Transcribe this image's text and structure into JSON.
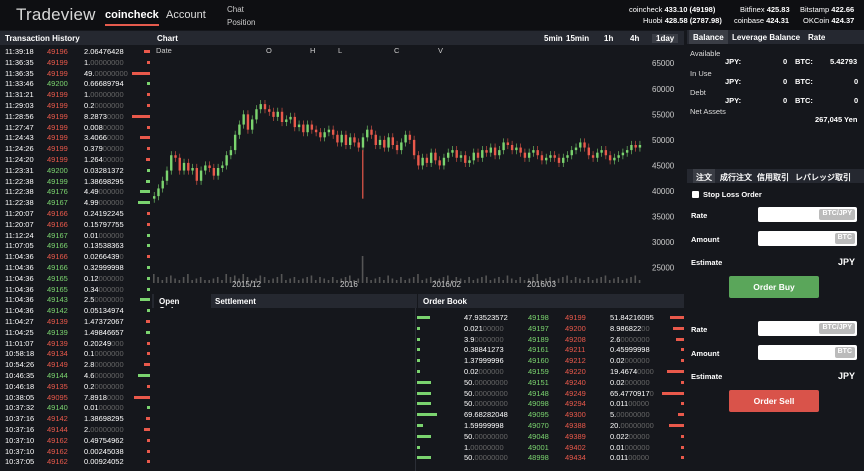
{
  "app": {
    "logo": "Tradeview",
    "nav": [
      "coincheck",
      "Account"
    ],
    "chat": "Chat",
    "position": "Position"
  },
  "quotes": [
    {
      "ex": "coincheck",
      "val": "433.10 (49198)"
    },
    {
      "ex": "Bitfinex",
      "val": "425.83"
    },
    {
      "ex": "Bitstamp",
      "val": "422.66"
    },
    {
      "ex": "Huobi",
      "val": "428.58 (2787.98)"
    },
    {
      "ex": "coinbase",
      "val": "424.31"
    },
    {
      "ex": "OKCoin",
      "val": "424.37"
    }
  ],
  "transaction_history": {
    "title": "Transaction History",
    "rows": [
      [
        "11:39:18",
        "49196",
        "2.06476428",
        "r",
        0.3
      ],
      [
        "11:36:35",
        "49199",
        "1.00000000",
        "r",
        0.1
      ],
      [
        "11:36:35",
        "49199",
        "49.00000000",
        "r",
        0.9
      ],
      [
        "11:33:46",
        "49200",
        "0.66689794",
        "g",
        0.1
      ],
      [
        "11:31:21",
        "49199",
        "1.00000000",
        "r",
        0.1
      ],
      [
        "11:29:03",
        "49199",
        "0.20000000",
        "r",
        0.05
      ],
      [
        "11:28:56",
        "49199",
        "8.28730000",
        "r",
        0.9
      ],
      [
        "11:27:47",
        "49199",
        "0.00800000",
        "r",
        0.05
      ],
      [
        "11:24:43",
        "49199",
        "3.40660000",
        "r",
        0.5
      ],
      [
        "11:24:26",
        "49199",
        "0.37900000",
        "r",
        0.1
      ],
      [
        "11:24:20",
        "49199",
        "1.26400000",
        "r",
        0.2
      ],
      [
        "11:23:31",
        "49200",
        "0.03281372",
        "g",
        0.05
      ],
      [
        "11:22:38",
        "49199",
        "1.38698295",
        "g",
        0.2
      ],
      [
        "11:22:38",
        "49176",
        "4.49000000",
        "g",
        0.5
      ],
      [
        "11:22:38",
        "49167",
        "4.99000000",
        "g",
        0.6
      ],
      [
        "11:20:07",
        "49166",
        "0.24192245",
        "r",
        0.05
      ],
      [
        "11:20:07",
        "49166",
        "0.15797755",
        "r",
        0.05
      ],
      [
        "11:12:24",
        "49167",
        "0.01000000",
        "g",
        0.05
      ],
      [
        "11:07:05",
        "49166",
        "0.13538363",
        "g",
        0.05
      ],
      [
        "11:04:36",
        "49166",
        "0.02664390",
        "r",
        0.05
      ],
      [
        "11:04:36",
        "49166",
        "0.32999998",
        "g",
        0.05
      ],
      [
        "11:04:36",
        "49165",
        "0.12000000",
        "g",
        0.05
      ],
      [
        "11:04:36",
        "49165",
        "0.34000000",
        "g",
        0.05
      ],
      [
        "11:04:36",
        "49143",
        "2.50000000",
        "g",
        0.5
      ],
      [
        "11:04:36",
        "49142",
        "0.05134974",
        "g",
        0.05
      ],
      [
        "11:04:27",
        "49139",
        "1.47372067",
        "r",
        0.2
      ],
      [
        "11:04:25",
        "49139",
        "1.49846657",
        "g",
        0.2
      ],
      [
        "11:01:07",
        "49139",
        "0.20249000",
        "r",
        0.05
      ],
      [
        "10:58:18",
        "49134",
        "0.10000000",
        "r",
        0.05
      ],
      [
        "10:54:26",
        "49149",
        "2.80000000",
        "r",
        0.3
      ],
      [
        "10:46:35",
        "49144",
        "4.60000000",
        "g",
        0.6
      ],
      [
        "10:46:18",
        "49135",
        "0.20000000",
        "r",
        0.05
      ],
      [
        "10:38:05",
        "49095",
        "7.89180000",
        "r",
        0.8
      ],
      [
        "10:37:32",
        "49140",
        "0.01000000",
        "g",
        0.05
      ],
      [
        "10:37:16",
        "49142",
        "1.38698295",
        "r",
        0.2
      ],
      [
        "10:37:16",
        "49144",
        "2.00000000",
        "r",
        0.3
      ],
      [
        "10:37:10",
        "49162",
        "0.49754962",
        "r",
        0.05
      ],
      [
        "10:37:10",
        "49162",
        "0.00245038",
        "r",
        0.05
      ],
      [
        "10:37:05",
        "49162",
        "0.00924052",
        "r",
        0.05
      ]
    ]
  },
  "chart": {
    "title": "Chart",
    "timeframes": [
      "5min",
      "15min",
      "1h",
      "4h",
      "1day"
    ],
    "selected_timeframe": "1day",
    "legend": [
      "Date",
      "O",
      "H",
      "L",
      "C",
      "V"
    ]
  },
  "chart_data": {
    "type": "candlestick",
    "y_ticks": [
      65000,
      60000,
      55000,
      50000,
      45000,
      40000,
      35000,
      30000,
      25000
    ],
    "ylim": [
      22000,
      67000
    ],
    "x_labels": [
      "2015/12",
      "2016",
      "2016/02",
      "2016/03"
    ],
    "closes": [
      39000,
      40500,
      42000,
      44000,
      47000,
      46500,
      44000,
      45500,
      44000,
      44500,
      42000,
      44000,
      45000,
      44500,
      43000,
      44500,
      45000,
      47000,
      48000,
      51000,
      53000,
      55000,
      52000,
      54000,
      56000,
      57000,
      56000,
      55500,
      54500,
      55500,
      53500,
      54000,
      54500,
      52500,
      53000,
      51500,
      53000,
      52000,
      51500,
      50500,
      51500,
      52000,
      51000,
      49500,
      51000,
      49000,
      50500,
      49500,
      48500,
      50500,
      52000,
      51000,
      49000,
      50000,
      48500,
      50500,
      49000,
      48000,
      49500,
      51000,
      50000,
      47000,
      45000,
      46500,
      45500,
      47500,
      46000,
      45000,
      46500,
      47500,
      48000,
      46500,
      47000,
      45500,
      46000,
      47500,
      46500,
      48000,
      47500,
      48500,
      47000,
      48000,
      49500,
      49000,
      48000,
      48500,
      47500,
      46500,
      47500,
      48000,
      47000,
      46000,
      46500,
      47000,
      46500,
      45500,
      46500,
      47000,
      48000,
      48500,
      49500,
      48500,
      47000,
      46500,
      47500,
      48000,
      47000,
      46000,
      46500,
      47000,
      47500,
      48000,
      49000,
      48500,
      49000
    ],
    "volume": [
      0.3,
      0.2,
      0.1,
      0.2,
      0.25,
      0.15,
      0.1,
      0.2,
      0.3,
      0.1,
      0.15,
      0.2,
      0.1,
      0.1,
      0.15,
      0.2,
      0.1,
      0.3,
      0.2,
      0.25,
      0.15,
      0.3,
      0.2,
      0.1,
      0.15,
      0.25,
      0.2,
      0.1,
      0.15,
      0.2,
      0.3,
      0.1,
      0.15,
      0.2,
      0.1,
      0.15,
      0.2,
      0.25,
      0.1,
      0.2,
      0.15,
      0.1,
      0.2,
      0.1,
      0.15,
      0.2,
      0.25,
      0.1,
      0.15,
      0.9,
      0.2,
      0.1,
      0.15,
      0.2,
      0.1,
      0.25,
      0.15,
      0.1,
      0.2,
      0.1,
      0.15,
      0.2,
      0.3,
      0.1,
      0.15,
      0.2,
      0.1,
      0.15,
      0.2,
      0.25,
      0.1,
      0.2,
      0.15,
      0.1,
      0.2,
      0.1,
      0.15,
      0.2,
      0.25,
      0.1,
      0.15,
      0.2,
      0.1,
      0.25,
      0.15,
      0.1,
      0.2,
      0.1,
      0.15,
      0.2,
      0.3,
      0.1,
      0.15,
      0.2,
      0.1,
      0.15,
      0.2,
      0.25,
      0.1,
      0.2,
      0.15,
      0.1,
      0.2,
      0.1,
      0.15,
      0.2,
      0.25,
      0.1,
      0.15,
      0.2,
      0.1,
      0.15,
      0.2,
      0.25,
      0.1
    ]
  },
  "bottom_tabs": {
    "open_orders": "Open Orders",
    "settlement": "Settlement",
    "order_book": "Order Book"
  },
  "order_book": [
    [
      "47.93523572",
      "49198",
      "49199",
      "51.84216095",
      0.45,
      0.5
    ],
    [
      "0.02100000",
      "49197",
      "49200",
      "8.98682200",
      0.05,
      0.4
    ],
    [
      "3.90000000",
      "49189",
      "49208",
      "2.60000000",
      0.1,
      0.3
    ],
    [
      "0.38841273",
      "49161",
      "49211",
      "0.45999998",
      0.05,
      0.05
    ],
    [
      "1.37999996",
      "49160",
      "49212",
      "0.02000000",
      0.1,
      0.05
    ],
    [
      "0.02000000",
      "49159",
      "49220",
      "19.46740000",
      0.05,
      0.6
    ],
    [
      "50.00000000",
      "49151",
      "49240",
      "0.02000000",
      0.5,
      0.05
    ],
    [
      "50.00000000",
      "49148",
      "49249",
      "65.47709170",
      0.5,
      0.8
    ],
    [
      "50.00000000",
      "49098",
      "49294",
      "0.01100000",
      0.5,
      0.05
    ],
    [
      "69.68282048",
      "49095",
      "49300",
      "5.00000000",
      0.7,
      0.2
    ],
    [
      "1.59999998",
      "49070",
      "49388",
      "20.00000000",
      0.2,
      0.55
    ],
    [
      "50.00000000",
      "49048",
      "49389",
      "0.02200000",
      0.5,
      0.05
    ],
    [
      "1.00000000",
      "49001",
      "49402",
      "0.01000000",
      0.1,
      0.05
    ],
    [
      "50.00000000",
      "48998",
      "49434",
      "0.01100000",
      0.5,
      0.05
    ]
  ],
  "balance": {
    "tabs": [
      "Balance",
      "Leverage Balance",
      "Rate"
    ],
    "available": "Available",
    "in_use": "In Use",
    "debt": "Debt",
    "net_assets": "Net Assets",
    "jpy": "JPY:",
    "btc": "BTC:",
    "avail_jpy": "0",
    "avail_btc": "5.42793",
    "inuse_jpy": "0",
    "inuse_btc": "0",
    "debt_jpy": "0",
    "debt_btc": "0",
    "net_assets_val": "267,045 Yen"
  },
  "order_form": {
    "tabs": [
      "注文",
      "成行注文",
      "信用取引",
      "レバレッジ取引"
    ],
    "stop_loss": "Stop Loss Order",
    "rate": "Rate",
    "amount": "Amount",
    "estimate": "Estimate",
    "unit_rate": "BTC/JPY",
    "unit_amount": "BTC",
    "currency": "JPY",
    "buy": "Order Buy",
    "sell": "Order Sell"
  }
}
